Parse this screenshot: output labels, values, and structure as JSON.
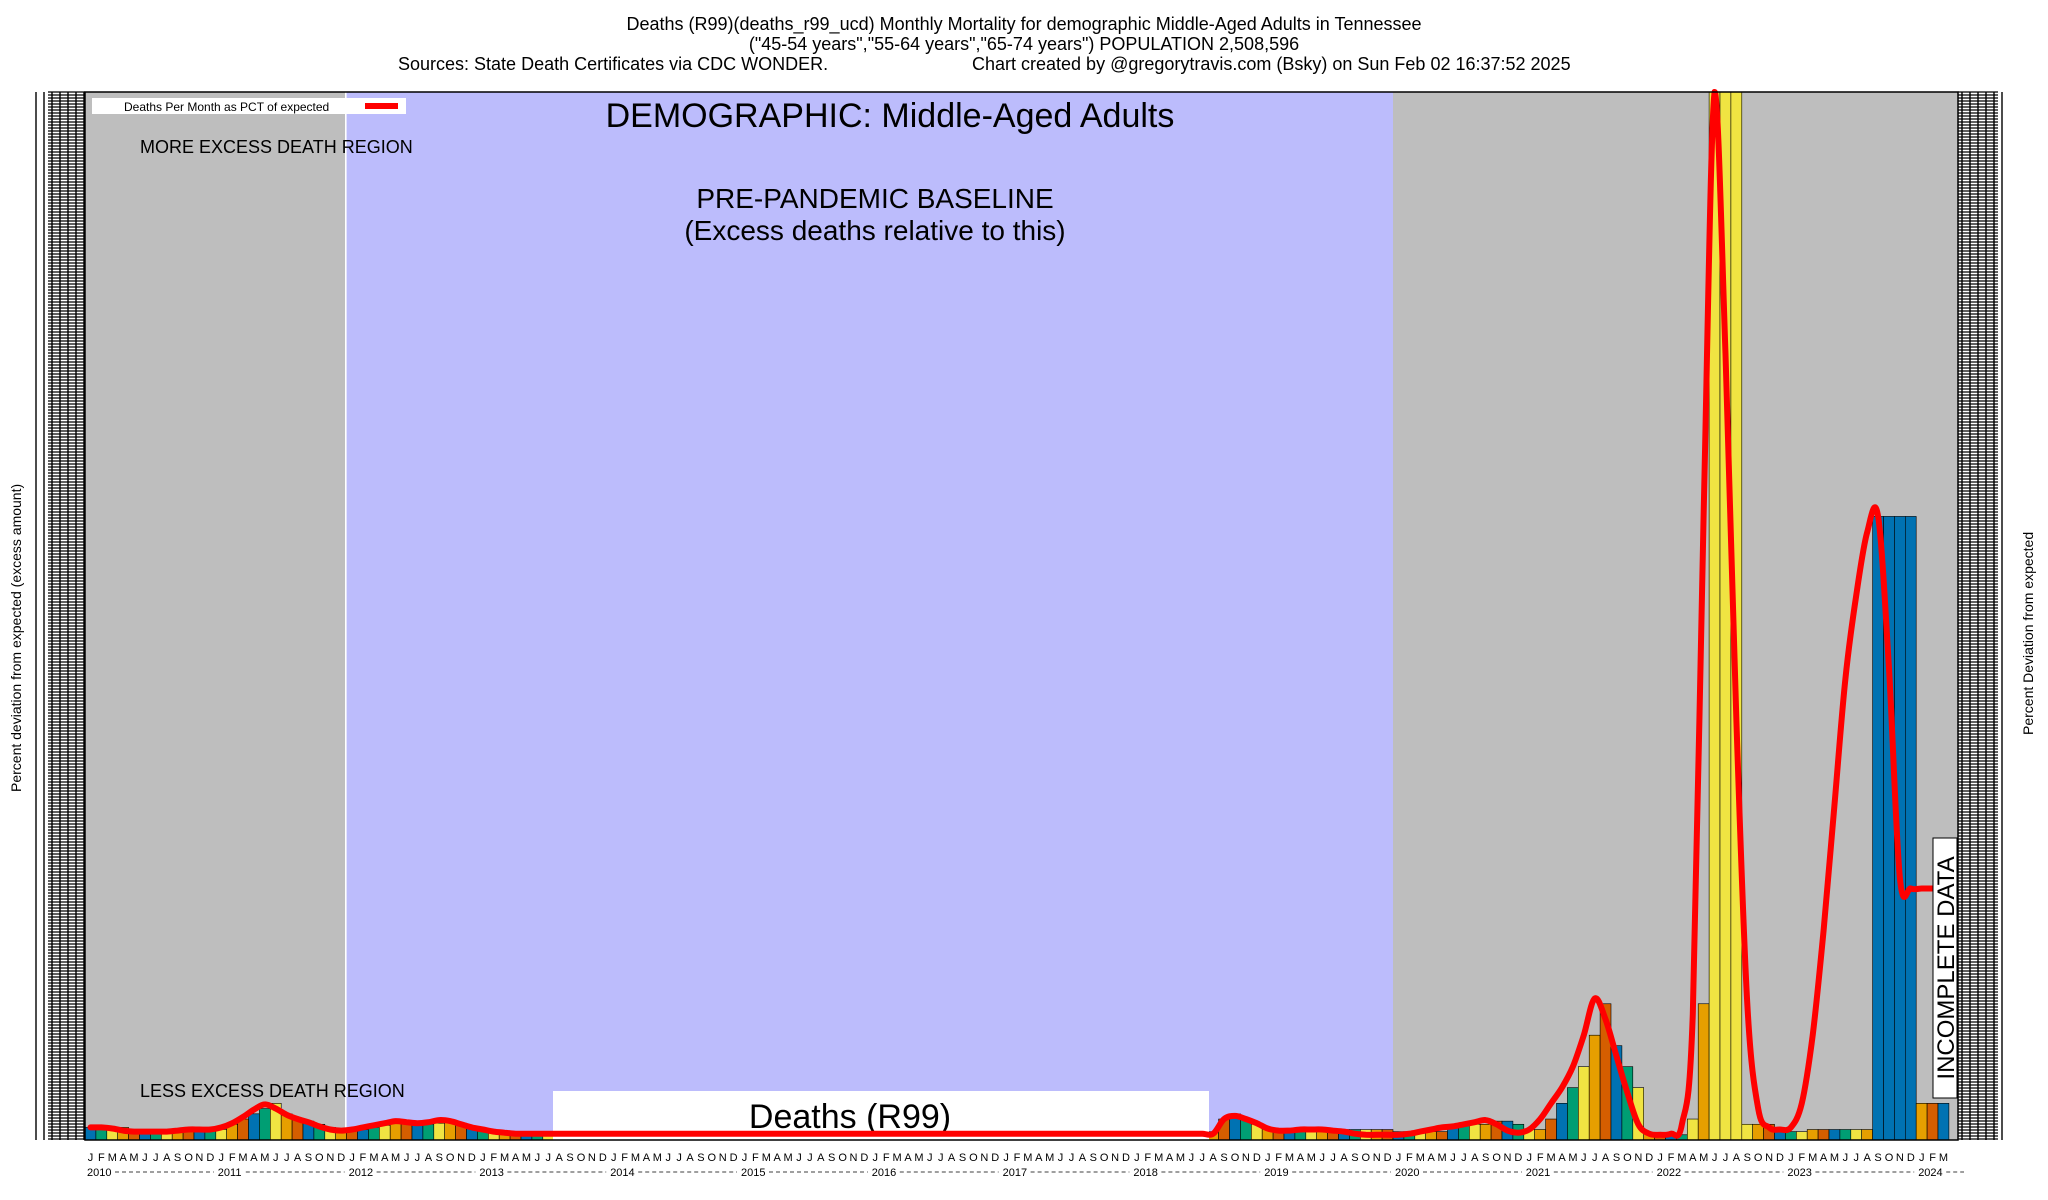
{
  "header": {
    "title_line1": "Deaths (R99)(deaths_r99_ucd) Monthly Mortality for demographic Middle-Aged Adults in Tennessee",
    "title_line2": "(\"45-54 years\",\"55-64 years\",\"65-74 years\") POPULATION 2,508,596",
    "sources": "Sources: State Death Certificates via CDC WONDER.",
    "credit": "Chart created by @gregorytravis.com (Bsky) on Sun Feb 02 16:37:52 2025"
  },
  "chart_data": {
    "type": "bar",
    "ylabel_left": "Percent deviation from expected (excess amount)",
    "ylabel_right": "Percent Deviation from expected",
    "legend": {
      "label": "Deaths Per Month as PCT of expected",
      "placement": "top-left"
    },
    "annotations": {
      "demographic": "DEMOGRAPHIC: Middle-Aged Adults",
      "more_excess": "MORE EXCESS DEATH REGION",
      "baseline_line1": "PRE-PANDEMIC BASELINE",
      "baseline_line2": "(Excess deaths relative to this)",
      "less_excess": "LESS EXCESS DEATH REGION",
      "cause_box": "Deaths (R99)",
      "incomplete": "INCOMPLETE DATA"
    },
    "start_year": 2010,
    "end_year": 2024,
    "month_letters": [
      "J",
      "F",
      "M",
      "A",
      "M",
      "J",
      "J",
      "A",
      "S",
      "O",
      "N",
      "D"
    ],
    "year_labels": [
      "2010",
      "2011",
      "2012",
      "2013",
      "2014",
      "2015",
      "2016",
      "2017",
      "2018",
      "2019",
      "2020",
      "2021",
      "2022",
      "2023",
      "2024"
    ],
    "baseline_period": [
      "2012-01",
      "2019-12"
    ],
    "ylim": [
      0,
      100
    ],
    "series": [
      {
        "values": [
          1.2,
          1.2,
          1.2,
          1.2,
          0.8,
          0.8,
          0.8,
          0.8,
          1.0,
          1.0,
          1.0,
          1.0,
          1.0,
          1.5,
          2.0,
          2.5,
          3.0,
          3.5,
          2.5,
          2.0,
          1.8,
          1.5,
          1.2,
          1.0,
          1.0,
          1.0,
          1.2,
          1.4,
          1.6,
          1.6,
          1.5,
          1.5,
          1.6,
          1.8,
          1.6,
          1.2,
          1.0,
          0.8,
          0.8,
          0.8,
          0.8,
          0.8,
          0.8,
          0.8,
          0.8,
          0.8,
          0.8,
          0.8,
          0.8,
          0.8,
          0.8,
          0.8,
          0.8,
          0.8,
          0.8,
          0.8,
          0.8,
          0.8,
          0.8,
          0.8,
          0.8,
          0.8,
          0.8,
          0.8,
          0.8,
          0.8,
          0.8,
          0.8,
          0.8,
          0.8,
          0.8,
          0.8,
          0.8,
          0.8,
          0.8,
          0.8,
          0.8,
          0.8,
          0.8,
          0.8,
          0.8,
          0.8,
          0.8,
          0.8,
          0.8,
          0.8,
          0.8,
          0.8,
          0.8,
          0.8,
          0.8,
          0.8,
          0.8,
          0.8,
          0.8,
          0.8,
          0.8,
          0.8,
          0.8,
          0.8,
          0.8,
          0.8,
          0.8,
          0.8,
          2.0,
          2.5,
          2.0,
          1.5,
          1.2,
          1.0,
          1.0,
          1.0,
          1.0,
          1.0,
          1.0,
          1.0,
          1.0,
          1.0,
          1.0,
          1.0,
          0.8,
          0.8,
          0.8,
          0.8,
          0.8,
          1.2,
          1.5,
          1.5,
          1.5,
          1.8,
          1.8,
          1.5,
          1.0,
          1.0,
          2.0,
          3.5,
          5.0,
          7.0,
          10.0,
          13.0,
          9.0,
          7.0,
          5.0,
          0.6,
          0.5,
          0.5,
          0.5,
          2.0,
          13.0,
          100.0,
          100.0,
          100.0,
          1.5,
          1.5,
          1.5,
          1.0,
          0.8,
          0.8,
          1.0,
          1.0,
          1.0,
          1.0,
          1.0,
          1.0,
          59.5,
          59.5,
          59.5,
          59.5,
          3.5,
          3.5,
          3.5
        ]
      }
    ],
    "line_values": [
      1.2,
      1.2,
      1.1,
      0.9,
      0.8,
      0.8,
      0.8,
      0.8,
      0.9,
      1.0,
      1.0,
      1.0,
      1.2,
      1.6,
      2.2,
      2.9,
      3.4,
      3.0,
      2.4,
      2.0,
      1.7,
      1.3,
      1.0,
      0.9,
      1.0,
      1.2,
      1.4,
      1.6,
      1.8,
      1.7,
      1.6,
      1.7,
      1.9,
      1.8,
      1.5,
      1.2,
      1.0,
      0.8,
      0.7,
      0.6,
      0.6,
      0.6,
      0.6,
      0.6,
      0.6,
      0.6,
      0.6,
      0.6,
      0.6,
      0.6,
      0.6,
      0.6,
      0.6,
      0.6,
      0.6,
      0.6,
      0.6,
      0.6,
      0.6,
      0.6,
      0.6,
      0.6,
      0.6,
      0.6,
      0.6,
      0.6,
      0.6,
      0.6,
      0.6,
      0.6,
      0.6,
      0.6,
      0.6,
      0.6,
      0.6,
      0.6,
      0.6,
      0.6,
      0.6,
      0.6,
      0.6,
      0.6,
      0.6,
      0.6,
      0.6,
      0.6,
      0.6,
      0.6,
      0.6,
      0.6,
      0.6,
      0.6,
      0.6,
      0.6,
      0.6,
      0.6,
      0.6,
      0.6,
      0.6,
      0.6,
      0.6,
      0.6,
      0.6,
      0.6,
      2.0,
      2.3,
      2.0,
      1.6,
      1.1,
      0.9,
      0.9,
      1.0,
      1.0,
      1.0,
      0.9,
      0.8,
      0.6,
      0.5,
      0.5,
      0.5,
      0.5,
      0.6,
      0.8,
      1.0,
      1.2,
      1.3,
      1.5,
      1.7,
      1.9,
      1.5,
      0.9,
      0.7,
      1.0,
      2.0,
      3.5,
      5.0,
      7.0,
      10.0,
      13.5,
      11.5,
      8.0,
      4.5,
      1.5,
      0.6,
      0.5,
      0.6,
      1.5,
      12.0,
      60.0,
      100.0,
      75.0,
      40.0,
      13.0,
      3.0,
      1.2,
      1.0,
      1.2,
      3.5,
      10.0,
      20.0,
      32.0,
      44.0,
      52.0,
      58.0,
      59.5,
      45.0,
      25.0,
      24.0,
      24.0,
      24.0,
      24.0
    ],
    "bar_colors": [
      "#0072b2",
      "#009e73",
      "#f0e442",
      "#e69f00",
      "#d55e00"
    ]
  }
}
